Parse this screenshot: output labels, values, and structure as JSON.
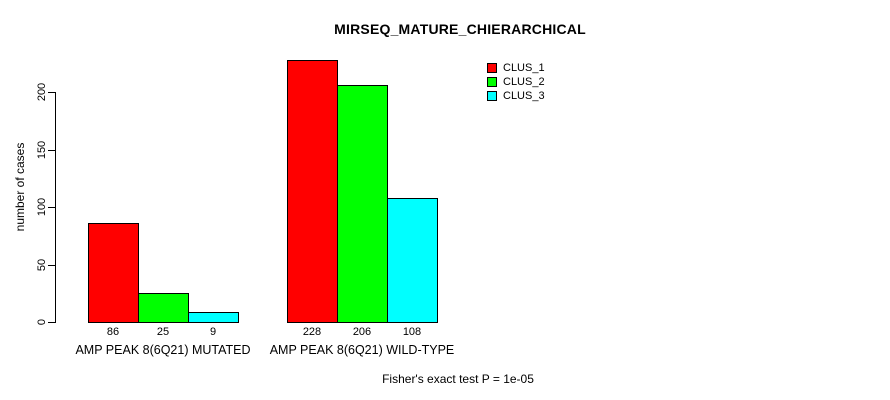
{
  "chart_data": {
    "type": "bar",
    "title": "MIRSEQ_MATURE_CHIERARCHICAL",
    "ylabel": "number of cases",
    "ylim": [
      0,
      230
    ],
    "yticks": [
      0,
      50,
      100,
      150,
      200
    ],
    "grid": false,
    "legend_position": "top-right",
    "series": [
      {
        "name": "CLUS_1",
        "color": "#ff0000"
      },
      {
        "name": "CLUS_2",
        "color": "#00ff00"
      },
      {
        "name": "CLUS_3",
        "color": "#00ffff"
      }
    ],
    "groups": [
      {
        "label": "AMP PEAK 8(6Q21) MUTATED",
        "values": [
          86,
          25,
          9
        ]
      },
      {
        "label": "AMP PEAK 8(6Q21) WILD-TYPE",
        "values": [
          228,
          206,
          108
        ]
      }
    ],
    "annotation": "Fisher's exact test P = 1e-05"
  }
}
